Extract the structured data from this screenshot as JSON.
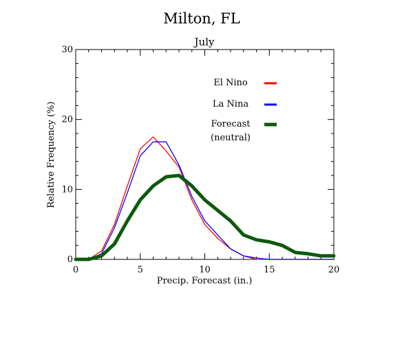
{
  "chart_data": {
    "type": "line",
    "title": "Milton, FL",
    "subtitle": "July",
    "xlabel": "Precip. Forecast (in.)",
    "ylabel": "Relative Frequency (%)",
    "xlim": [
      0,
      20
    ],
    "ylim": [
      0,
      30
    ],
    "x_ticks": [
      0,
      5,
      10,
      15,
      20
    ],
    "y_ticks": [
      0,
      10,
      20,
      30
    ],
    "grid": false,
    "legend_position": "top-right",
    "x": [
      0,
      1,
      2,
      3,
      4,
      5,
      6,
      7,
      8,
      9,
      10,
      11,
      12,
      13,
      14,
      15,
      16,
      17,
      18,
      19,
      20
    ],
    "series": [
      {
        "name": "El Nino",
        "color": "#ff0000",
        "width": "thin",
        "values": [
          0.0,
          0.0,
          1.2,
          5.0,
          10.5,
          15.8,
          17.5,
          15.5,
          13.2,
          8.5,
          5.0,
          3.0,
          1.5,
          0.5,
          0.0,
          0.0,
          0.0,
          0.0,
          0.0,
          0.0,
          0.0
        ]
      },
      {
        "name": "La Nina",
        "color": "#0000ff",
        "width": "thin",
        "values": [
          0.0,
          0.0,
          0.8,
          4.5,
          9.5,
          14.8,
          16.8,
          16.8,
          13.5,
          9.0,
          5.5,
          3.5,
          1.5,
          0.5,
          0.2,
          0.0,
          0.0,
          0.0,
          0.0,
          0.0,
          0.0
        ]
      },
      {
        "name": "Forecast (neutral)",
        "name_lines": [
          "Forecast",
          "(neutral)"
        ],
        "color": "#0b5a0b",
        "width": "thick",
        "values": [
          0.0,
          0.0,
          0.5,
          2.2,
          5.5,
          8.5,
          10.5,
          11.8,
          12.0,
          10.5,
          8.5,
          7.0,
          5.5,
          3.5,
          2.8,
          2.5,
          2.0,
          1.0,
          0.8,
          0.5,
          0.5
        ]
      }
    ]
  }
}
